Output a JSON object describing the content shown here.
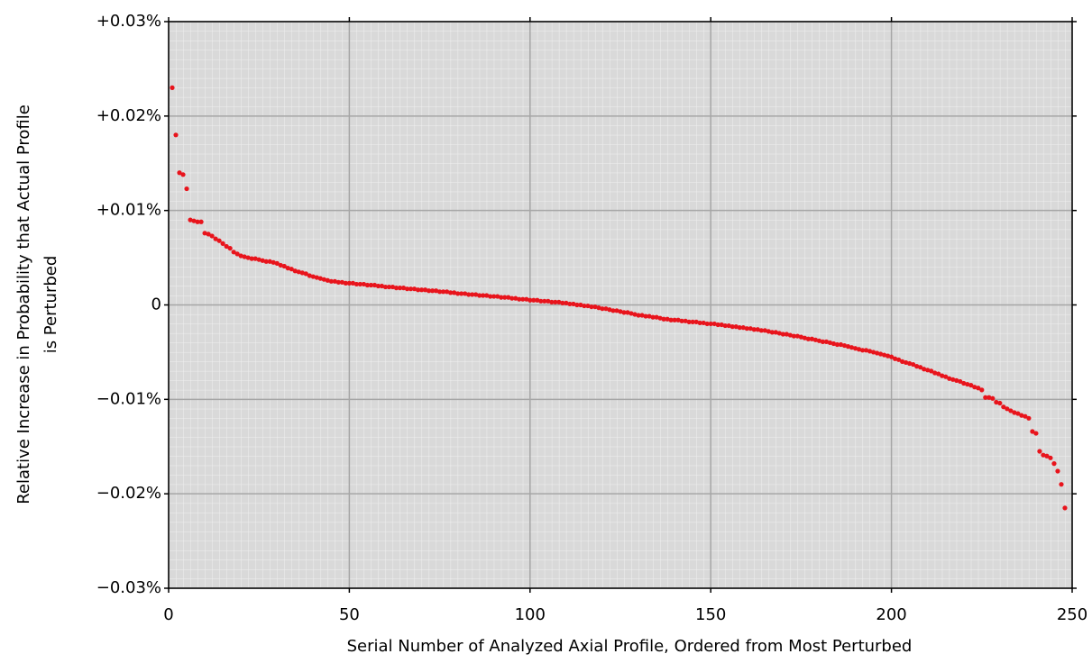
{
  "chart_data": {
    "type": "scatter",
    "xlabel": "Serial Number of Analyzed Axial Profile, Ordered from Most Perturbed",
    "ylabel": [
      "Relative Increase in Probability that Actual Profile",
      "is Perturbed"
    ],
    "xlim": [
      0,
      250
    ],
    "xticks": [
      0,
      50,
      100,
      150,
      200,
      250
    ],
    "ylim": [
      -0.03,
      0.03
    ],
    "yticks": [
      {
        "value": -0.03,
        "label": "−0.03%"
      },
      {
        "value": -0.02,
        "label": "−0.02%"
      },
      {
        "value": -0.01,
        "label": "−0.01%"
      },
      0,
      {
        "value": 0.01,
        "label": "+0.01%"
      },
      {
        "value": 0.02,
        "label": "+0.02%"
      },
      {
        "value": 0.03,
        "label": "+0.03%"
      }
    ],
    "grid": true,
    "color": "#e8141c",
    "x": [
      1,
      2,
      3,
      4,
      5,
      6,
      7,
      8,
      9,
      10,
      11,
      12,
      13,
      14,
      15,
      16,
      17,
      18,
      19,
      20,
      21,
      22,
      23,
      24,
      25,
      26,
      27,
      28,
      29,
      30,
      31,
      32,
      33,
      34,
      35,
      36,
      37,
      38,
      39,
      40,
      41,
      42,
      43,
      44,
      45,
      46,
      47,
      48,
      49,
      50,
      51,
      52,
      53,
      54,
      55,
      56,
      57,
      58,
      59,
      60,
      61,
      62,
      63,
      64,
      65,
      66,
      67,
      68,
      69,
      70,
      71,
      72,
      73,
      74,
      75,
      76,
      77,
      78,
      79,
      80,
      81,
      82,
      83,
      84,
      85,
      86,
      87,
      88,
      89,
      90,
      91,
      92,
      93,
      94,
      95,
      96,
      97,
      98,
      99,
      100,
      101,
      102,
      103,
      104,
      105,
      106,
      107,
      108,
      109,
      110,
      111,
      112,
      113,
      114,
      115,
      116,
      117,
      118,
      119,
      120,
      121,
      122,
      123,
      124,
      125,
      126,
      127,
      128,
      129,
      130,
      131,
      132,
      133,
      134,
      135,
      136,
      137,
      138,
      139,
      140,
      141,
      142,
      143,
      144,
      145,
      146,
      147,
      148,
      149,
      150,
      151,
      152,
      153,
      154,
      155,
      156,
      157,
      158,
      159,
      160,
      161,
      162,
      163,
      164,
      165,
      166,
      167,
      168,
      169,
      170,
      171,
      172,
      173,
      174,
      175,
      176,
      177,
      178,
      179,
      180,
      181,
      182,
      183,
      184,
      185,
      186,
      187,
      188,
      189,
      190,
      191,
      192,
      193,
      194,
      195,
      196,
      197,
      198,
      199,
      200,
      201,
      202,
      203,
      204,
      205,
      206,
      207,
      208,
      209,
      210,
      211,
      212,
      213,
      214,
      215,
      216,
      217,
      218,
      219,
      220,
      221,
      222,
      223,
      224,
      225,
      226,
      227,
      228,
      229,
      230,
      231,
      232,
      233,
      234,
      235,
      236,
      237,
      238,
      239,
      240,
      241,
      242,
      243,
      244,
      245,
      246,
      247,
      248
    ],
    "values": [
      0.023,
      0.018,
      0.014,
      0.0138,
      0.0123,
      0.009,
      0.0089,
      0.0088,
      0.0088,
      0.0076,
      0.0075,
      0.0073,
      0.007,
      0.0068,
      0.0065,
      0.0062,
      0.006,
      0.0056,
      0.0054,
      0.0052,
      0.0051,
      0.005,
      0.0049,
      0.0049,
      0.0048,
      0.0047,
      0.0046,
      0.0046,
      0.0045,
      0.0044,
      0.0042,
      0.0041,
      0.0039,
      0.0038,
      0.0036,
      0.0035,
      0.0034,
      0.0033,
      0.0031,
      0.003,
      0.0029,
      0.0028,
      0.0027,
      0.0026,
      0.0025,
      0.0025,
      0.0024,
      0.0024,
      0.0023,
      0.0023,
      0.0023,
      0.0022,
      0.0022,
      0.0022,
      0.0021,
      0.0021,
      0.0021,
      0.002,
      0.002,
      0.0019,
      0.0019,
      0.0019,
      0.0018,
      0.0018,
      0.0018,
      0.0017,
      0.0017,
      0.0017,
      0.0016,
      0.0016,
      0.0016,
      0.0015,
      0.0015,
      0.0015,
      0.0014,
      0.0014,
      0.0014,
      0.0013,
      0.0013,
      0.0012,
      0.0012,
      0.0012,
      0.0011,
      0.0011,
      0.0011,
      0.001,
      0.001,
      0.001,
      0.0009,
      0.0009,
      0.0009,
      0.0008,
      0.0008,
      0.0008,
      0.0007,
      0.0007,
      0.0006,
      0.0006,
      0.0006,
      0.0005,
      0.0005,
      0.0005,
      0.0004,
      0.0004,
      0.0004,
      0.0003,
      0.0003,
      0.0003,
      0.0002,
      0.0002,
      0.0001,
      0.0001,
      0,
      0,
      -0.0001,
      -0.0001,
      -0.0002,
      -0.0002,
      -0.0003,
      -0.0004,
      -0.0004,
      -0.0005,
      -0.0006,
      -0.0006,
      -0.0007,
      -0.0008,
      -0.0008,
      -0.0009,
      -0.001,
      -0.0011,
      -0.0011,
      -0.0012,
      -0.0012,
      -0.0013,
      -0.0013,
      -0.0014,
      -0.0015,
      -0.0015,
      -0.0016,
      -0.0016,
      -0.0016,
      -0.0017,
      -0.0017,
      -0.0018,
      -0.0018,
      -0.0018,
      -0.0019,
      -0.0019,
      -0.002,
      -0.002,
      -0.002,
      -0.0021,
      -0.0021,
      -0.0022,
      -0.0022,
      -0.0023,
      -0.0023,
      -0.0024,
      -0.0024,
      -0.0025,
      -0.0025,
      -0.0026,
      -0.0026,
      -0.0027,
      -0.0027,
      -0.0028,
      -0.0029,
      -0.0029,
      -0.003,
      -0.0031,
      -0.0031,
      -0.0032,
      -0.0033,
      -0.0033,
      -0.0034,
      -0.0035,
      -0.0036,
      -0.0036,
      -0.0037,
      -0.0038,
      -0.0039,
      -0.0039,
      -0.004,
      -0.0041,
      -0.0042,
      -0.0042,
      -0.0043,
      -0.0044,
      -0.0045,
      -0.0046,
      -0.0047,
      -0.0048,
      -0.0048,
      -0.0049,
      -0.005,
      -0.0051,
      -0.0052,
      -0.0053,
      -0.0054,
      -0.0055,
      -0.0057,
      -0.0058,
      -0.006,
      -0.0061,
      -0.0062,
      -0.0063,
      -0.0065,
      -0.0066,
      -0.0068,
      -0.0069,
      -0.007,
      -0.0072,
      -0.0073,
      -0.0075,
      -0.0076,
      -0.0078,
      -0.0079,
      -0.008,
      -0.0081,
      -0.0083,
      -0.0084,
      -0.0085,
      -0.0087,
      -0.0088,
      -0.009,
      -0.0098,
      -0.0098,
      -0.0099,
      -0.0103,
      -0.0104,
      -0.0108,
      -0.011,
      -0.0112,
      -0.0114,
      -0.0115,
      -0.0117,
      -0.0118,
      -0.012,
      -0.0134,
      -0.0136,
      -0.0155,
      -0.0159,
      -0.016,
      -0.0162,
      -0.0168,
      -0.0176,
      -0.019,
      -0.0215
    ]
  }
}
